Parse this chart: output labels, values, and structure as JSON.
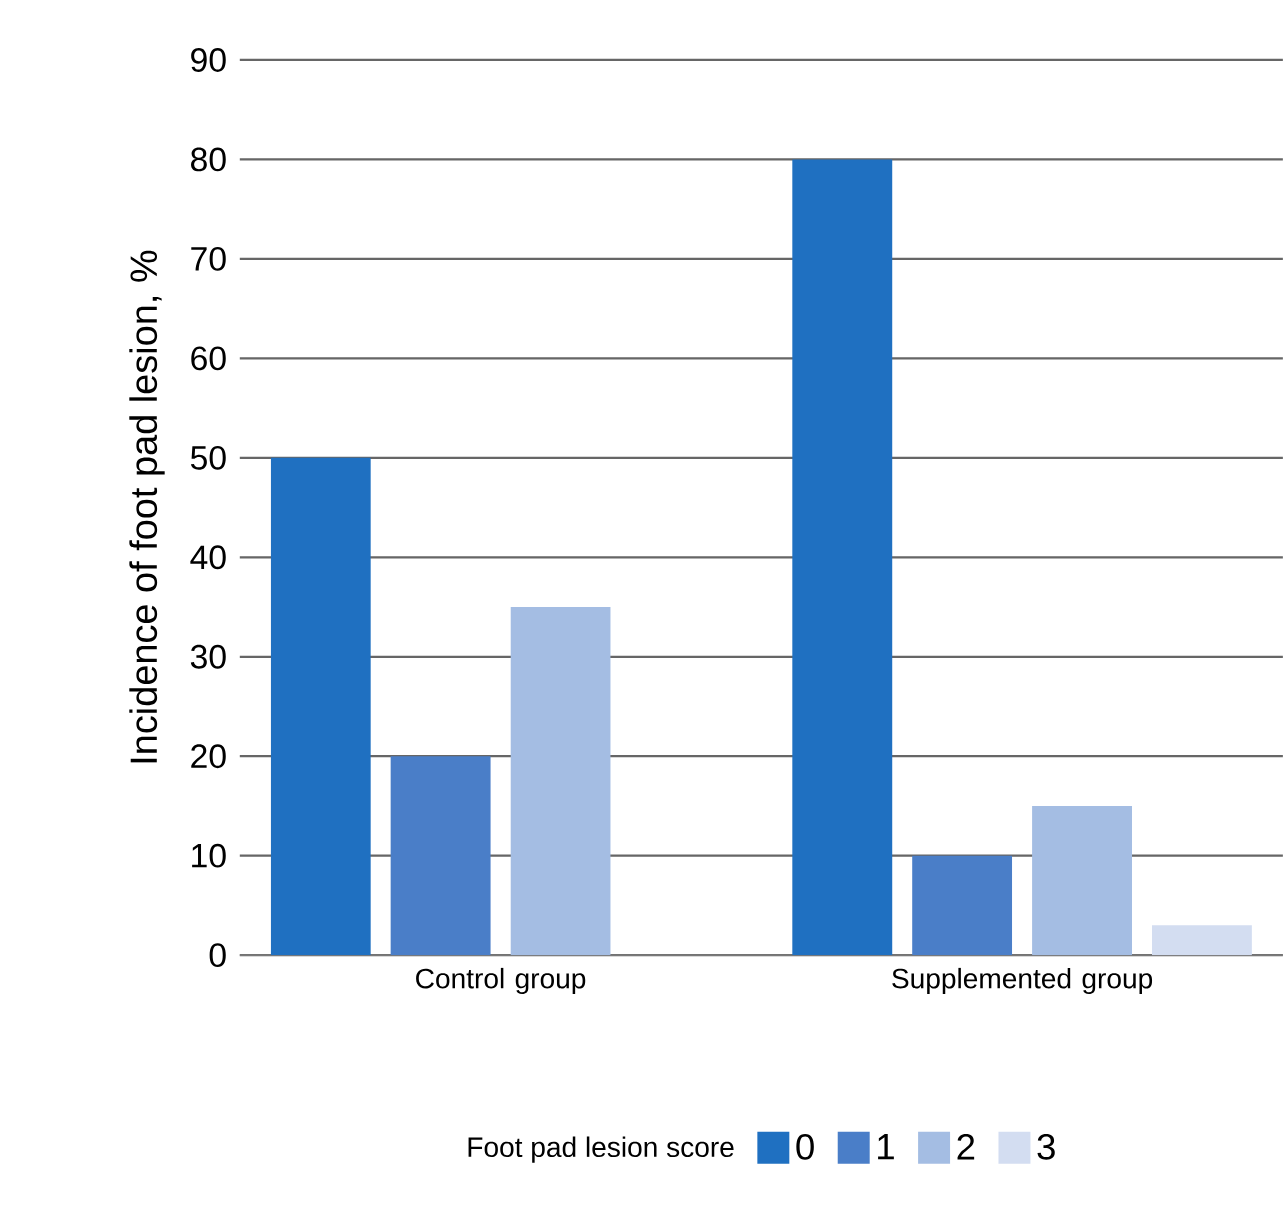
{
  "chart_data": {
    "type": "bar",
    "categories": [
      "Control group",
      "Supplemented group"
    ],
    "series": [
      {
        "name": "0",
        "color": "#1f70c1",
        "values": [
          50,
          80
        ]
      },
      {
        "name": "1",
        "color": "#4a7ec8",
        "values": [
          20,
          10
        ]
      },
      {
        "name": "2",
        "color": "#a4bde3",
        "values": [
          35,
          15
        ]
      },
      {
        "name": "3",
        "color": "#d3ddf1",
        "values": [
          null,
          3
        ]
      }
    ],
    "ylabel": "Incidence of foot pad lesion, %",
    "legend_title": "Foot pad lesion score",
    "ylim": [
      0,
      90
    ],
    "yticks": [
      0,
      10,
      20,
      30,
      40,
      50,
      60,
      70,
      80,
      90
    ],
    "grid": "y",
    "legend": "bottom"
  }
}
